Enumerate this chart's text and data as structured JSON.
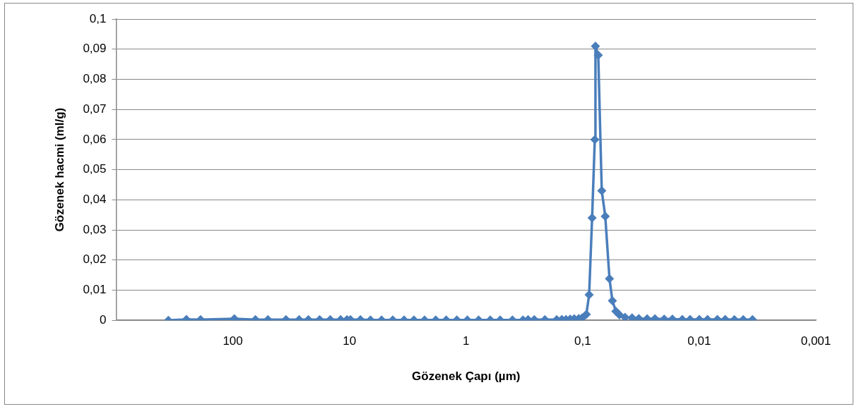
{
  "chart_data": {
    "type": "line",
    "xlabel": "Gözenek Çapı (µm)",
    "ylabel": "Gözenek hacmi (ml/g)",
    "x": [
      357,
      250,
      189,
      97,
      64,
      50,
      35,
      27,
      22.5,
      18,
      14.6,
      11.9,
      10.5,
      9.8,
      8.05,
      6.6,
      5.3,
      4.25,
      3.4,
      2.8,
      2.27,
      1.82,
      1.48,
      1.2,
      0.975,
      0.78,
      0.62,
      0.51,
      0.4,
      0.325,
      0.294,
      0.26,
      0.211,
      0.167,
      0.151,
      0.139,
      0.128,
      0.118,
      0.108,
      0.101,
      0.093,
      0.088,
      0.083,
      0.0787,
      0.0777,
      0.0735,
      0.0686,
      0.064,
      0.0589,
      0.0556,
      0.0519,
      0.0484,
      0.0433,
      0.0377,
      0.033,
      0.028,
      0.024,
      0.02,
      0.017,
      0.014,
      0.012,
      0.01,
      0.0085,
      0.007,
      0.006,
      0.005,
      0.0042,
      0.0035
    ],
    "series": [
      {
        "color": "#4a7ebb",
        "values": [
          0,
          0.0003,
          0.0002,
          0.0005,
          0.0002,
          0.0002,
          0.0002,
          0.0002,
          0.0002,
          0.0002,
          0.0002,
          0.0002,
          0.0002,
          0.0002,
          0.0002,
          0.0001,
          0.0001,
          0.0001,
          0.0001,
          0.0001,
          0.0001,
          0.0001,
          0.0001,
          0.0001,
          0.0001,
          0.0001,
          0.0001,
          0.0001,
          0.0001,
          0.0001,
          0.0002,
          0.0002,
          0.0002,
          0.0002,
          0.0003,
          0.0003,
          0.0004,
          0.0005,
          0.0006,
          0.0008,
          0.002,
          0.0085,
          0.034,
          0.06,
          0.091,
          0.088,
          0.043,
          0.0345,
          0.0138,
          0.0065,
          0.003,
          0.0018,
          0.001,
          0.0008,
          0.0006,
          0.0005,
          0.0005,
          0.0004,
          0.0004,
          0.0003,
          0.0003,
          0.0003,
          0.0003,
          0.0003,
          0.0003,
          0.0002,
          0.0002,
          0.0002
        ]
      }
    ],
    "xlim": [
      1000,
      0.001
    ],
    "xticks": [
      {
        "value": 1000,
        "label": null
      },
      {
        "value": 100,
        "label": "100"
      },
      {
        "value": 10,
        "label": "10"
      },
      {
        "value": 1,
        "label": "1"
      },
      {
        "value": 0.1,
        "label": "0,1"
      },
      {
        "value": 0.01,
        "label": "0,01"
      },
      {
        "value": 0.001,
        "label": "0,001"
      }
    ],
    "ylim": [
      0,
      0.1
    ],
    "yticks": [
      {
        "value": 0,
        "label": "0"
      },
      {
        "value": 0.01,
        "label": "0,01"
      },
      {
        "value": 0.02,
        "label": "0,02"
      },
      {
        "value": 0.03,
        "label": "0,03"
      },
      {
        "value": 0.04,
        "label": "0,04"
      },
      {
        "value": 0.05,
        "label": "0,05"
      },
      {
        "value": 0.06,
        "label": "0,06"
      },
      {
        "value": 0.07,
        "label": "0,07"
      },
      {
        "value": 0.08,
        "label": "0,08"
      },
      {
        "value": 0.09,
        "label": "0,09"
      },
      {
        "value": 0.1,
        "label": "0,1"
      }
    ],
    "log": "x",
    "grid": "y",
    "legend": false,
    "marker": "diamond",
    "line_style": "solid"
  }
}
